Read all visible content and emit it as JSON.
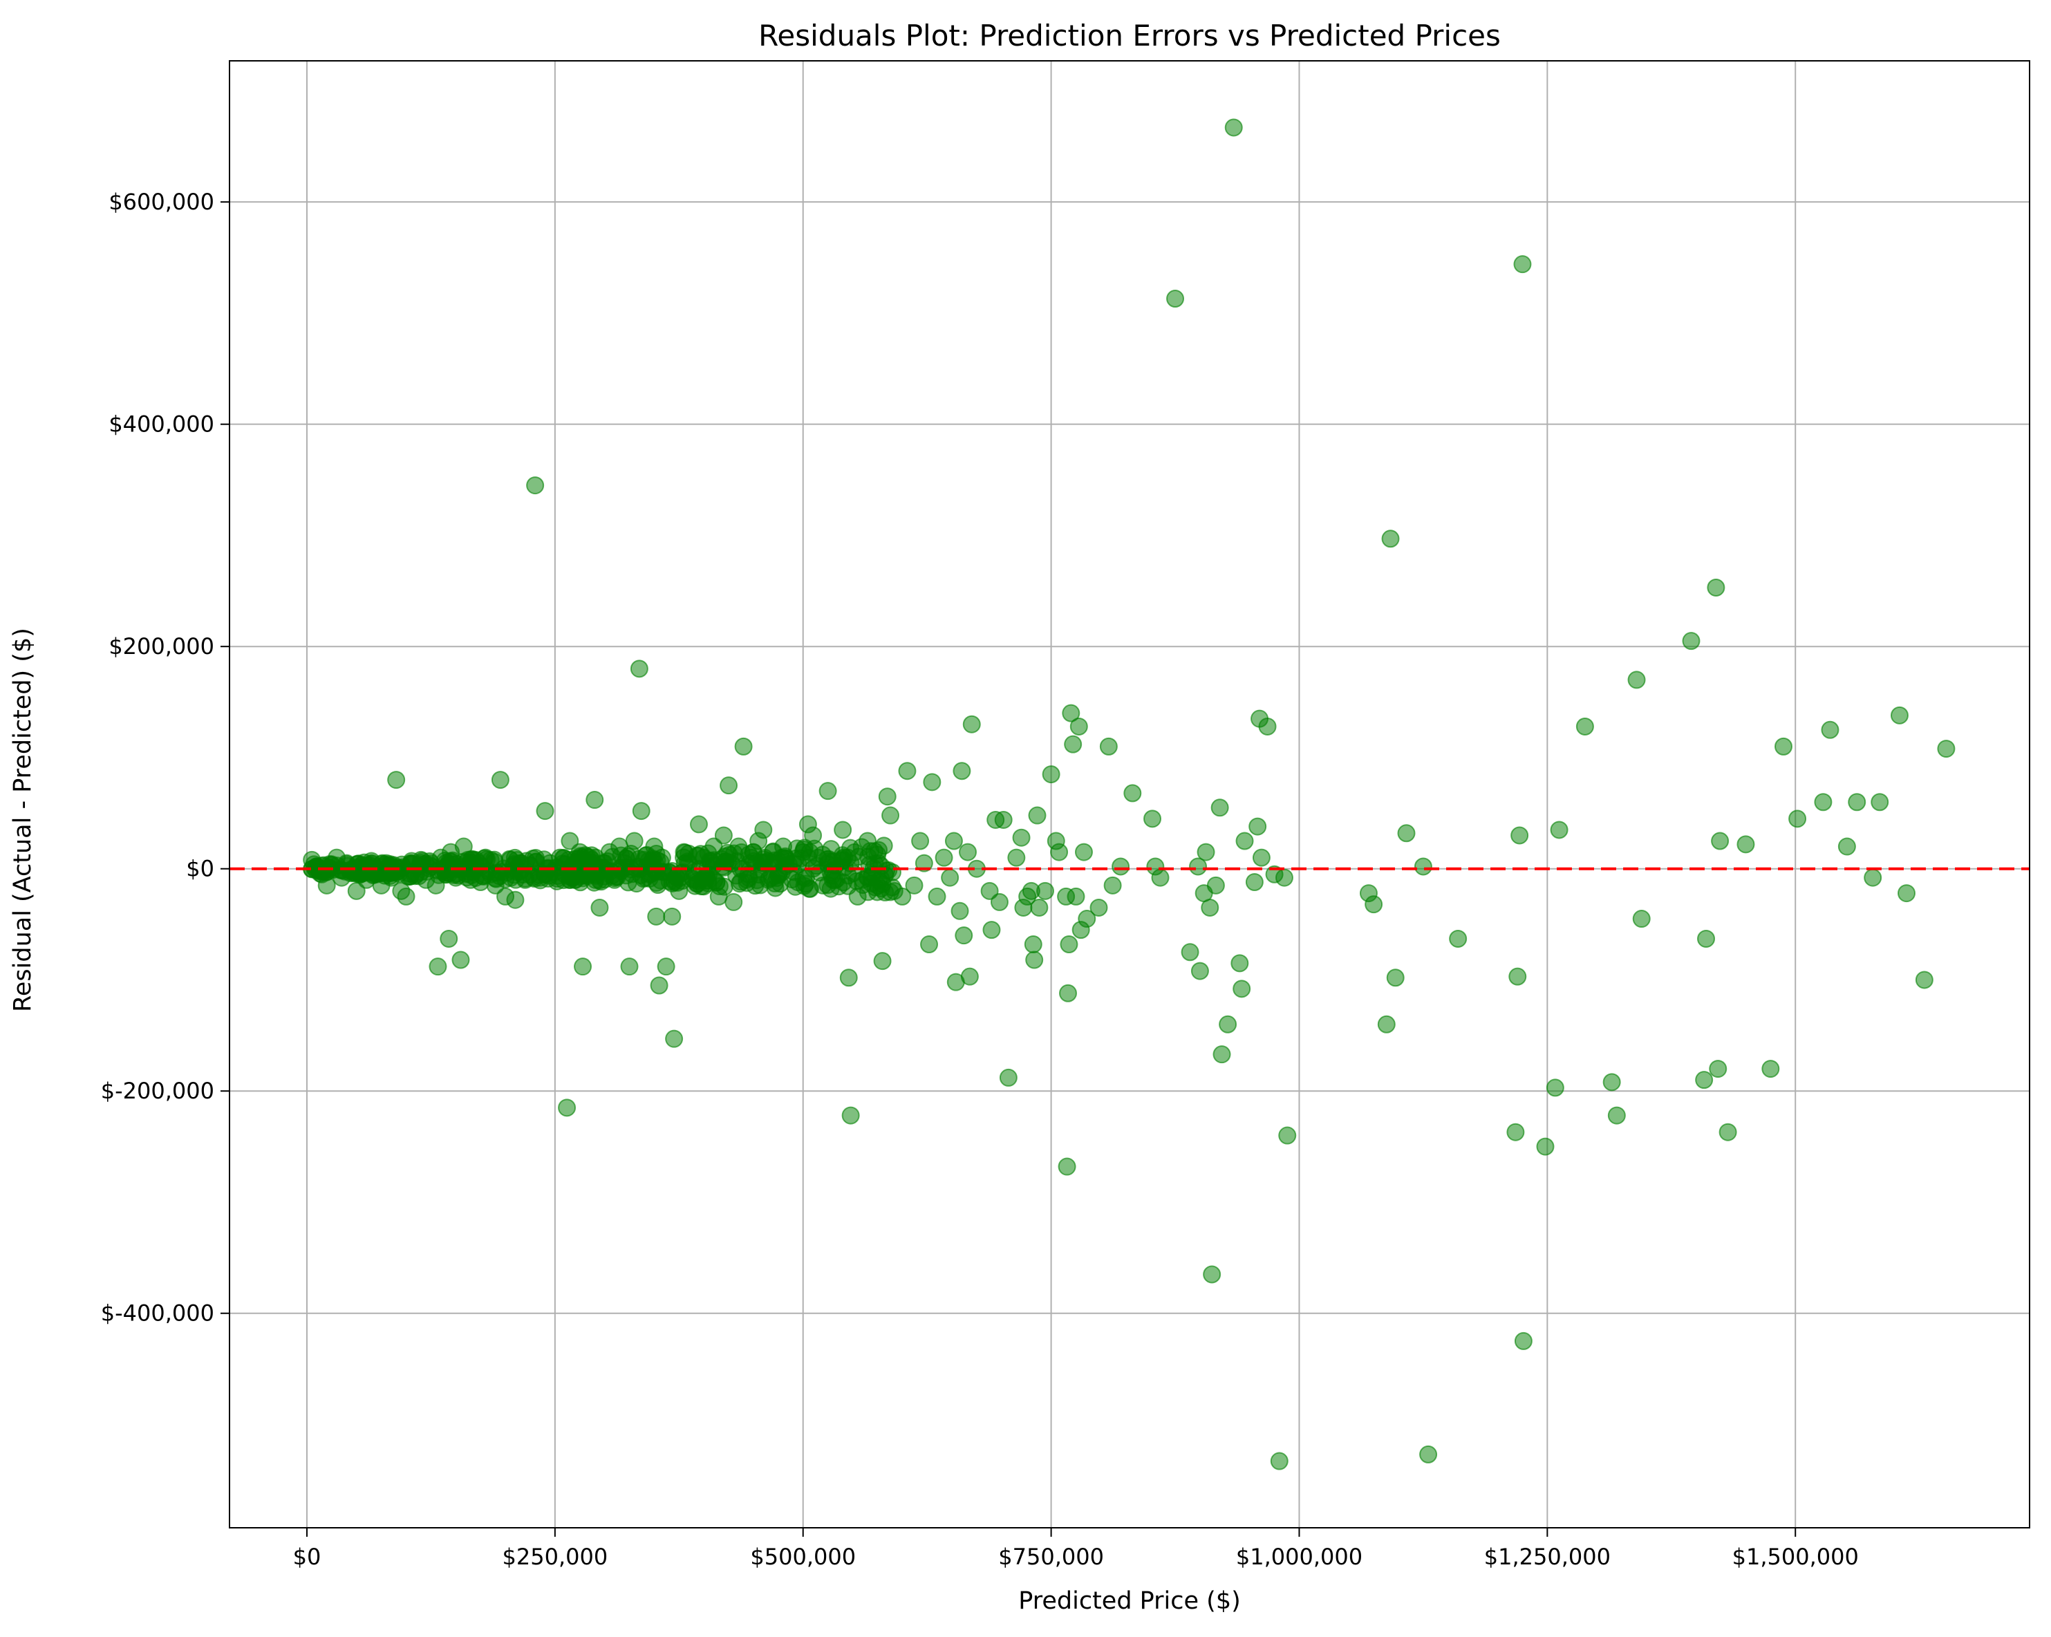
{
  "chart_data": {
    "type": "scatter",
    "title": "Residuals Plot: Prediction Errors vs Predicted Prices",
    "xlabel": "Predicted Price ($)",
    "ylabel": "Residual (Actual - Predicted) ($)",
    "xlim": [
      -78000,
      1736000
    ],
    "ylim": [
      -593000,
      727000
    ],
    "grid": true,
    "legend": "none",
    "colors": {
      "points": "#008000",
      "reference_line": "#ff0000",
      "grid": "#b0b0b0"
    },
    "x_ticks": [
      {
        "value": 0,
        "label": "$0"
      },
      {
        "value": 250000,
        "label": "$250,000"
      },
      {
        "value": 500000,
        "label": "$500,000"
      },
      {
        "value": 750000,
        "label": "$750,000"
      },
      {
        "value": 1000000,
        "label": "$1,000,000"
      },
      {
        "value": 1250000,
        "label": "$1,250,000"
      },
      {
        "value": 1500000,
        "label": "$1,500,000"
      }
    ],
    "y_ticks": [
      {
        "value": -400000,
        "label": "$-400,000"
      },
      {
        "value": -200000,
        "label": "$-200,000"
      },
      {
        "value": 0,
        "label": "$0"
      },
      {
        "value": 200000,
        "label": "$200,000"
      },
      {
        "value": 400000,
        "label": "$400,000"
      },
      {
        "value": 600000,
        "label": "$600,000"
      }
    ],
    "reference_line": {
      "y": 0,
      "style": "dashed"
    },
    "points": [
      [
        5000,
        8000
      ],
      [
        10000,
        2000
      ],
      [
        15000,
        -5000
      ],
      [
        20000,
        -15000
      ],
      [
        25000,
        4000
      ],
      [
        30000,
        10000
      ],
      [
        35000,
        -8000
      ],
      [
        40000,
        5000
      ],
      [
        45000,
        -2000
      ],
      [
        50000,
        -20000
      ],
      [
        55000,
        3000
      ],
      [
        60000,
        -10000
      ],
      [
        65000,
        7000
      ],
      [
        70000,
        -5000
      ],
      [
        75000,
        -15000
      ],
      [
        80000,
        5000
      ],
      [
        85000,
        -8000
      ],
      [
        90000,
        80000
      ],
      [
        95000,
        -20000
      ],
      [
        100000,
        -25000
      ],
      [
        105000,
        5000
      ],
      [
        110000,
        -5000
      ],
      [
        115000,
        8000
      ],
      [
        120000,
        -10000
      ],
      [
        125000,
        5000
      ],
      [
        130000,
        -15000
      ],
      [
        132000,
        -88000
      ],
      [
        135000,
        10000
      ],
      [
        140000,
        -5000
      ],
      [
        143000,
        -63000
      ],
      [
        145000,
        15000
      ],
      [
        150000,
        -8000
      ],
      [
        155000,
        -82000
      ],
      [
        158000,
        20000
      ],
      [
        160000,
        5000
      ],
      [
        165000,
        -10000
      ],
      [
        170000,
        8000
      ],
      [
        175000,
        -12000
      ],
      [
        180000,
        10000
      ],
      [
        185000,
        -5000
      ],
      [
        190000,
        -15000
      ],
      [
        195000,
        80000
      ],
      [
        200000,
        -25000
      ],
      [
        205000,
        8000
      ],
      [
        210000,
        -28000
      ],
      [
        215000,
        5000
      ],
      [
        220000,
        -10000
      ],
      [
        225000,
        3000
      ],
      [
        230000,
        345000
      ],
      [
        235000,
        -8000
      ],
      [
        240000,
        52000
      ],
      [
        245000,
        5000
      ],
      [
        250000,
        -3000
      ],
      [
        255000,
        10000
      ],
      [
        260000,
        -5000
      ],
      [
        262000,
        -215000
      ],
      [
        265000,
        25000
      ],
      [
        270000,
        -10000
      ],
      [
        275000,
        15000
      ],
      [
        278000,
        -88000
      ],
      [
        280000,
        -5000
      ],
      [
        285000,
        10000
      ],
      [
        290000,
        62000
      ],
      [
        295000,
        -35000
      ],
      [
        300000,
        5000
      ],
      [
        305000,
        15000
      ],
      [
        310000,
        -10000
      ],
      [
        315000,
        20000
      ],
      [
        320000,
        5000
      ],
      [
        325000,
        -88000
      ],
      [
        330000,
        25000
      ],
      [
        335000,
        180000
      ],
      [
        337000,
        52000
      ],
      [
        340000,
        8000
      ],
      [
        345000,
        -5000
      ],
      [
        350000,
        20000
      ],
      [
        352000,
        -43000
      ],
      [
        355000,
        -105000
      ],
      [
        358000,
        10000
      ],
      [
        362000,
        -88000
      ],
      [
        365000,
        -3000
      ],
      [
        368000,
        -43000
      ],
      [
        370000,
        -153000
      ],
      [
        375000,
        -20000
      ],
      [
        380000,
        15000
      ],
      [
        385000,
        5000
      ],
      [
        390000,
        -10000
      ],
      [
        395000,
        40000
      ],
      [
        400000,
        10000
      ],
      [
        405000,
        -5000
      ],
      [
        410000,
        20000
      ],
      [
        415000,
        -25000
      ],
      [
        420000,
        30000
      ],
      [
        425000,
        75000
      ],
      [
        430000,
        -30000
      ],
      [
        435000,
        20000
      ],
      [
        440000,
        110000
      ],
      [
        445000,
        -5000
      ],
      [
        450000,
        15000
      ],
      [
        455000,
        25000
      ],
      [
        460000,
        35000
      ],
      [
        465000,
        -10000
      ],
      [
        470000,
        5000
      ],
      [
        475000,
        -5000
      ],
      [
        480000,
        20000
      ],
      [
        490000,
        5000
      ],
      [
        500000,
        15000
      ],
      [
        505000,
        40000
      ],
      [
        510000,
        30000
      ],
      [
        515000,
        10000
      ],
      [
        520000,
        -15000
      ],
      [
        525000,
        70000
      ],
      [
        530000,
        -10000
      ],
      [
        540000,
        35000
      ],
      [
        545000,
        10000
      ],
      [
        546000,
        -98000
      ],
      [
        548000,
        -222000
      ],
      [
        555000,
        -25000
      ],
      [
        560000,
        -10000
      ],
      [
        565000,
        25000
      ],
      [
        570000,
        -5000
      ],
      [
        575000,
        -15000
      ],
      [
        580000,
        -83000
      ],
      [
        585000,
        65000
      ],
      [
        588000,
        48000
      ],
      [
        592000,
        -20000
      ],
      [
        600000,
        -25000
      ],
      [
        605000,
        88000
      ],
      [
        612000,
        -15000
      ],
      [
        618000,
        25000
      ],
      [
        622000,
        5000
      ],
      [
        627000,
        -68000
      ],
      [
        630000,
        78000
      ],
      [
        635000,
        -25000
      ],
      [
        642000,
        10000
      ],
      [
        648000,
        -8000
      ],
      [
        652000,
        25000
      ],
      [
        654000,
        -102000
      ],
      [
        658000,
        -38000
      ],
      [
        660000,
        88000
      ],
      [
        662000,
        -60000
      ],
      [
        666000,
        15000
      ],
      [
        668000,
        -97000
      ],
      [
        670000,
        130000
      ],
      [
        675000,
        0
      ],
      [
        688000,
        -20000
      ],
      [
        690000,
        -55000
      ],
      [
        694000,
        44000
      ],
      [
        698000,
        -30000
      ],
      [
        702000,
        44000
      ],
      [
        707000,
        -188000
      ],
      [
        715000,
        10000
      ],
      [
        720000,
        28000
      ],
      [
        722000,
        -35000
      ],
      [
        726000,
        -25000
      ],
      [
        730000,
        -20000
      ],
      [
        732000,
        -68000
      ],
      [
        733000,
        -82000
      ],
      [
        736000,
        48000
      ],
      [
        738000,
        -35000
      ],
      [
        744000,
        -20000
      ],
      [
        750000,
        85000
      ],
      [
        755000,
        25000
      ],
      [
        758000,
        15000
      ],
      [
        765000,
        -25000
      ],
      [
        766000,
        -268000
      ],
      [
        767000,
        -112000
      ],
      [
        768000,
        -68000
      ],
      [
        770000,
        140000
      ],
      [
        772000,
        112000
      ],
      [
        775000,
        -25000
      ],
      [
        778000,
        128000
      ],
      [
        780000,
        -55000
      ],
      [
        783000,
        15000
      ],
      [
        786000,
        -45000
      ],
      [
        798000,
        -35000
      ],
      [
        808000,
        110000
      ],
      [
        812000,
        -15000
      ],
      [
        820000,
        2000
      ],
      [
        832000,
        68000
      ],
      [
        852000,
        45000
      ],
      [
        855000,
        2000
      ],
      [
        860000,
        -8000
      ],
      [
        875000,
        513000
      ],
      [
        890000,
        -75000
      ],
      [
        898000,
        2000
      ],
      [
        900000,
        -92000
      ],
      [
        904000,
        -22000
      ],
      [
        906000,
        15000
      ],
      [
        910000,
        -35000
      ],
      [
        912000,
        -365000
      ],
      [
        916000,
        -15000
      ],
      [
        920000,
        55000
      ],
      [
        922000,
        -167000
      ],
      [
        928000,
        -140000
      ],
      [
        934000,
        667000
      ],
      [
        940000,
        -85000
      ],
      [
        942000,
        -108000
      ],
      [
        945000,
        25000
      ],
      [
        955000,
        -12000
      ],
      [
        958000,
        38000
      ],
      [
        960000,
        135000
      ],
      [
        962000,
        10000
      ],
      [
        968000,
        128000
      ],
      [
        975000,
        -5000
      ],
      [
        980000,
        -533000
      ],
      [
        985000,
        -8000
      ],
      [
        988000,
        -240000
      ],
      [
        1070000,
        -22000
      ],
      [
        1075000,
        -32000
      ],
      [
        1088000,
        -140000
      ],
      [
        1092000,
        297000
      ],
      [
        1097000,
        -98000
      ],
      [
        1108000,
        32000
      ],
      [
        1125000,
        2000
      ],
      [
        1130000,
        -527000
      ],
      [
        1160000,
        -63000
      ],
      [
        1218000,
        -237000
      ],
      [
        1220000,
        -97000
      ],
      [
        1222000,
        30000
      ],
      [
        1225000,
        544000
      ],
      [
        1226000,
        -425000
      ],
      [
        1248000,
        -250000
      ],
      [
        1258000,
        -197000
      ],
      [
        1262000,
        35000
      ],
      [
        1288000,
        128000
      ],
      [
        1315000,
        -192000
      ],
      [
        1320000,
        -222000
      ],
      [
        1340000,
        170000
      ],
      [
        1345000,
        -45000
      ],
      [
        1395000,
        205000
      ],
      [
        1408000,
        -190000
      ],
      [
        1410000,
        -63000
      ],
      [
        1420000,
        253000
      ],
      [
        1422000,
        -180000
      ],
      [
        1424000,
        25000
      ],
      [
        1432000,
        -237000
      ],
      [
        1450000,
        22000
      ],
      [
        1475000,
        -180000
      ],
      [
        1488000,
        110000
      ],
      [
        1502000,
        45000
      ],
      [
        1528000,
        60000
      ],
      [
        1535000,
        125000
      ],
      [
        1552000,
        20000
      ],
      [
        1562000,
        60000
      ],
      [
        1578000,
        -8000
      ],
      [
        1585000,
        60000
      ],
      [
        1605000,
        138000
      ],
      [
        1612000,
        -22000
      ],
      [
        1630000,
        -100000
      ],
      [
        1652000,
        108000
      ]
    ]
  }
}
